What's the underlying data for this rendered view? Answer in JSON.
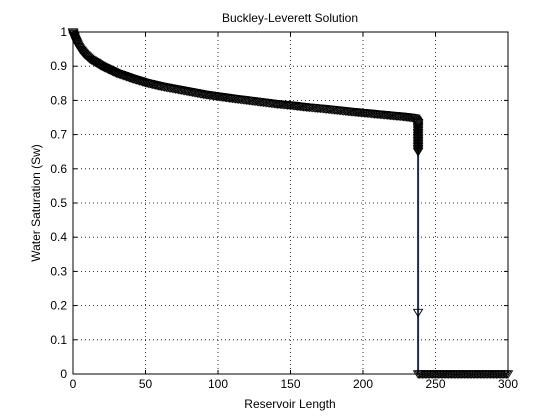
{
  "chart_data": {
    "type": "line",
    "title": "Buckley-Leverett Solution",
    "xlabel": "Reservoir Length",
    "ylabel": "Water Saturation (Sw)",
    "xlim": [
      0,
      300
    ],
    "ylim": [
      0,
      1
    ],
    "grid": true,
    "xticks": [
      0,
      50,
      100,
      150,
      200,
      250,
      300
    ],
    "yticks": [
      0,
      0.1,
      0.2,
      0.3,
      0.4,
      0.5,
      0.6,
      0.7,
      0.8,
      0.9,
      1
    ],
    "ytick_labels": [
      "0",
      "0.1",
      "0.2",
      "0.3",
      "0.4",
      "0.5",
      "0.6",
      "0.7",
      "0.8",
      "0.9",
      "1"
    ],
    "series": [
      {
        "marker": "triangle-down",
        "color": "#000000",
        "x": [
          0,
          0.5,
          1,
          2,
          3,
          5,
          8,
          12,
          20,
          30,
          40,
          50,
          60,
          75,
          90,
          100,
          110,
          125,
          140,
          150,
          160,
          175,
          190,
          200,
          210,
          220,
          230,
          236,
          238,
          238,
          238,
          238,
          238,
          240,
          250,
          260,
          270,
          280,
          290,
          300
        ],
        "y": [
          1.0,
          0.99,
          0.985,
          0.975,
          0.965,
          0.95,
          0.935,
          0.92,
          0.9,
          0.88,
          0.865,
          0.852,
          0.842,
          0.83,
          0.818,
          0.812,
          0.806,
          0.798,
          0.79,
          0.786,
          0.781,
          0.775,
          0.768,
          0.764,
          0.76,
          0.756,
          0.752,
          0.748,
          0.735,
          0.72,
          0.65,
          0.18,
          0.0,
          0.0,
          0.0,
          0.0,
          0.0,
          0.0,
          0.0,
          0.0
        ]
      }
    ],
    "front_line": {
      "x": 238,
      "y_top": 0.73,
      "y_bottom": 0.0,
      "color": "#1f2a4f"
    }
  }
}
